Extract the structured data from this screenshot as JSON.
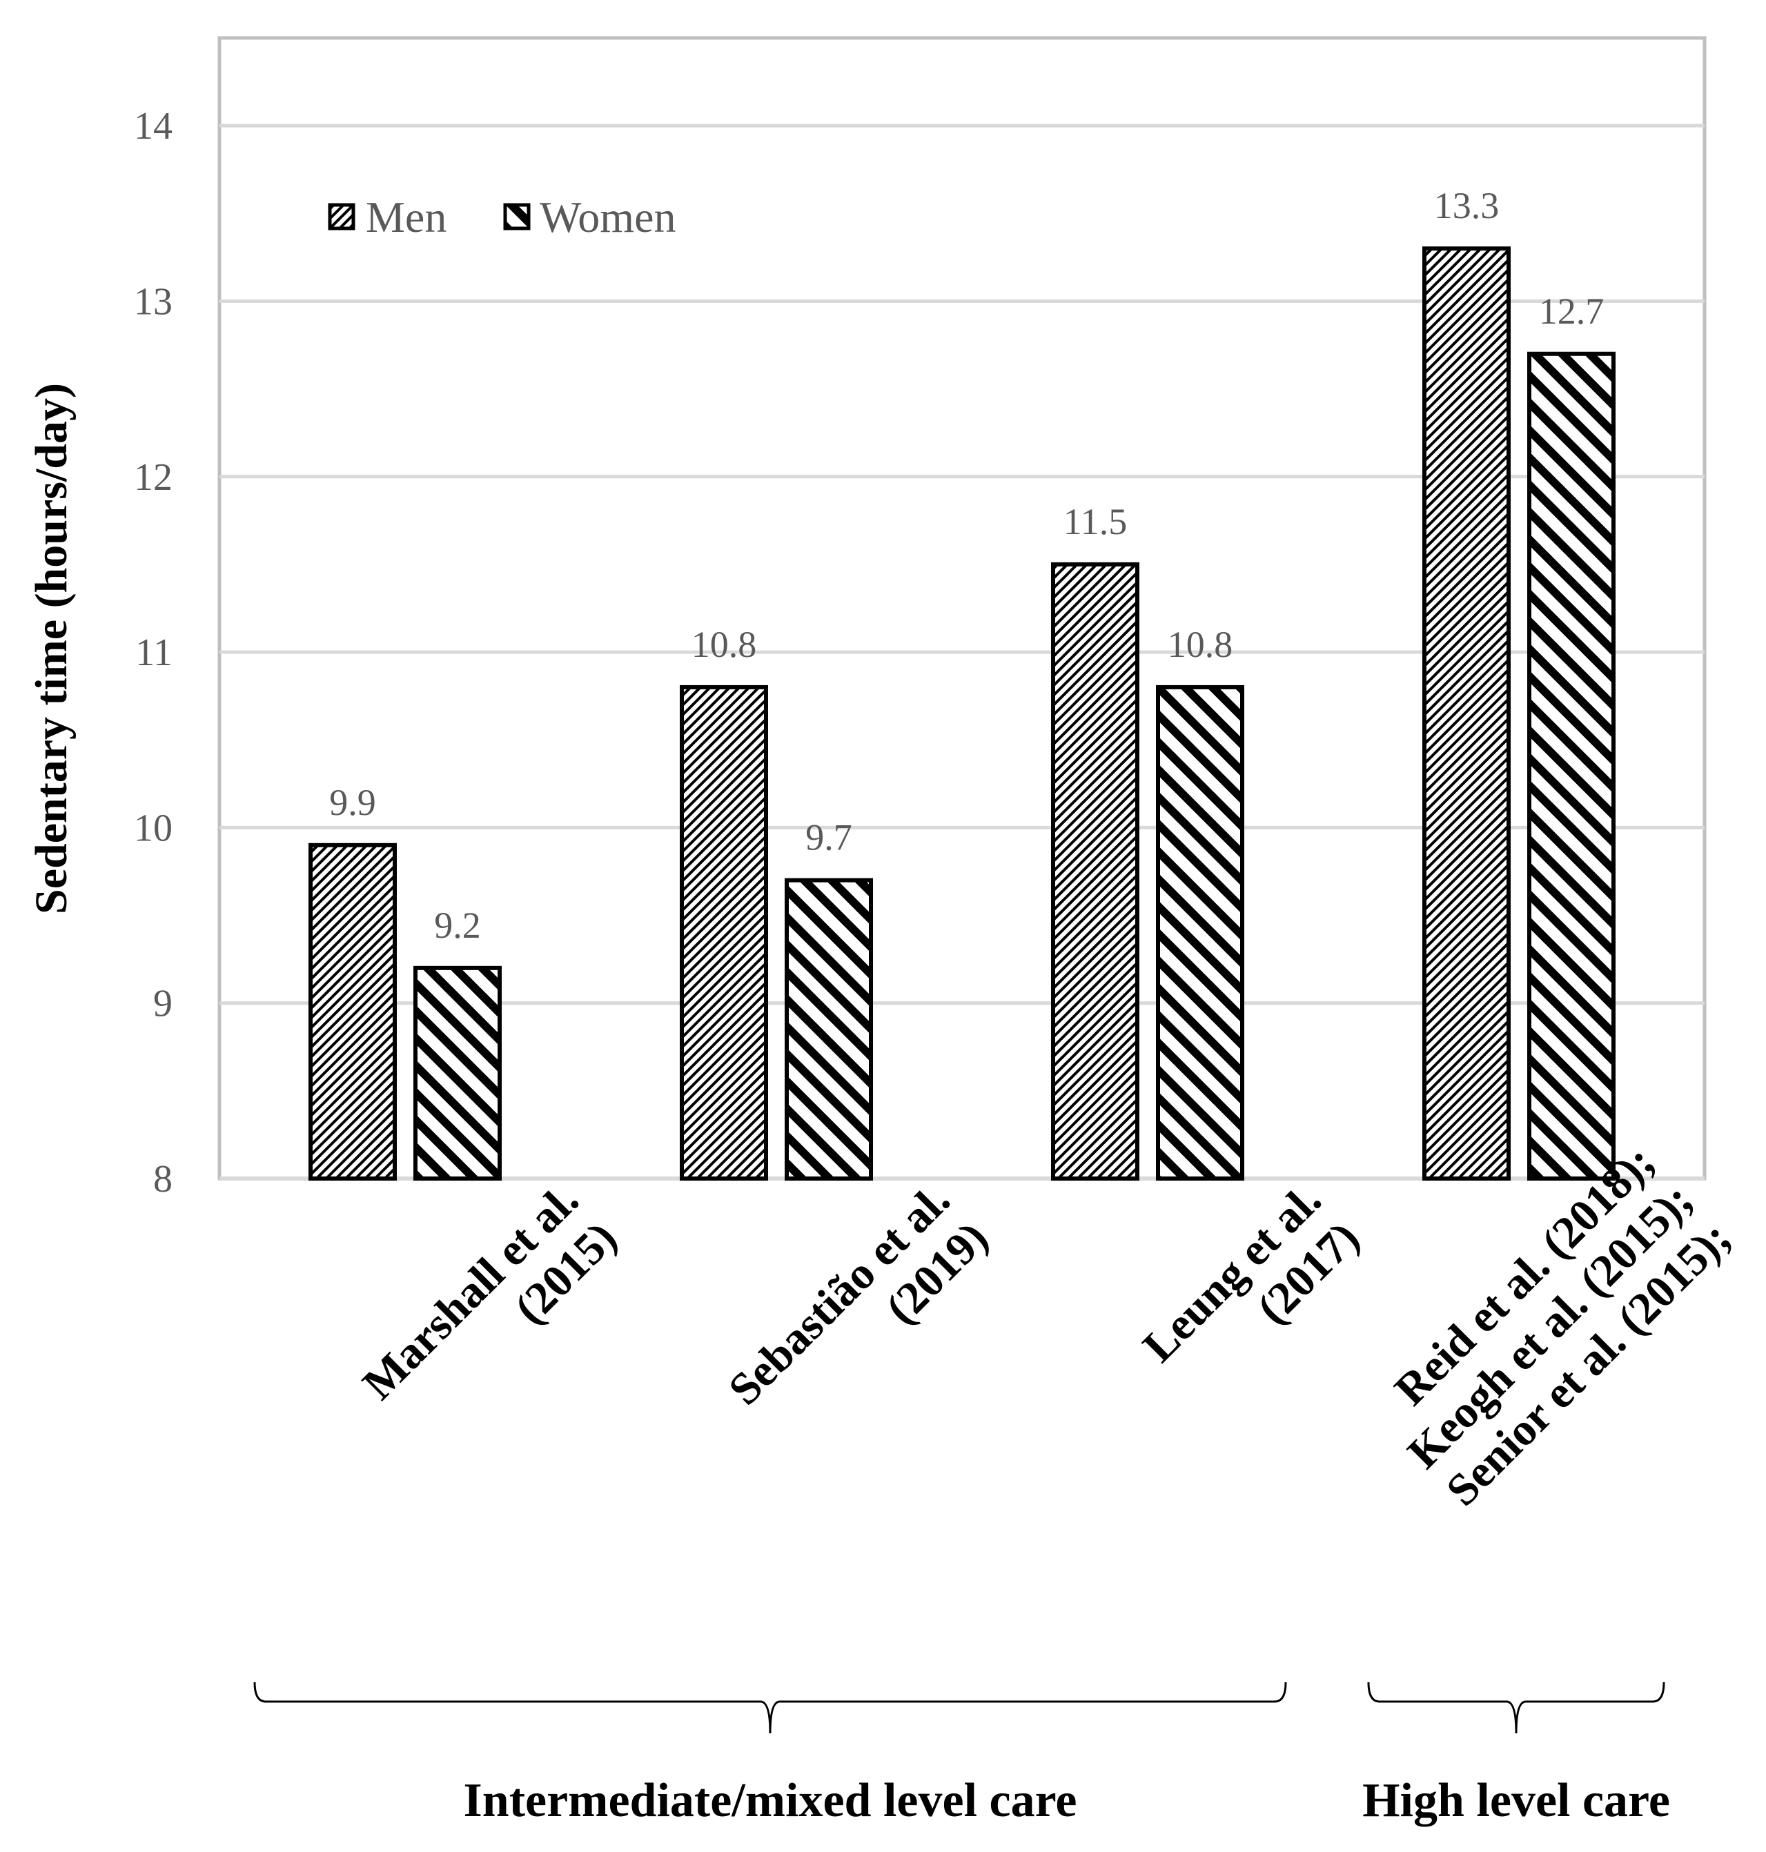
{
  "chart_data": {
    "type": "bar",
    "ylabel": "Sedentary time (hours/day)",
    "xlabel": "",
    "ylim": [
      8,
      14.5
    ],
    "yticks": [
      8,
      9,
      10,
      11,
      12,
      13,
      14
    ],
    "grid": true,
    "legend_position": "top-left",
    "categories": [
      [
        "Marshall et al.",
        "(2015)"
      ],
      [
        "Sebastião et al.",
        "(2019)"
      ],
      [
        "Leung et al.",
        "(2017)"
      ],
      [
        "Reid et al. (2018);",
        "Keogh et al. (2015);",
        "Senior et al. (2015);"
      ]
    ],
    "series": [
      {
        "name": "Men",
        "values": [
          9.9,
          10.8,
          11.5,
          13.3
        ],
        "labels": [
          "9.9",
          "10.8",
          "11.5",
          "13.3"
        ],
        "pattern": "fine-diagonal"
      },
      {
        "name": "Women",
        "values": [
          9.2,
          9.7,
          10.8,
          12.7
        ],
        "labels": [
          "9.2",
          "9.7",
          "10.8",
          "12.7"
        ],
        "pattern": "bold-diagonal"
      }
    ],
    "groups": [
      {
        "label": "Intermediate/mixed level care",
        "categories": [
          0,
          1,
          2
        ]
      },
      {
        "label": "High level care",
        "categories": [
          3
        ]
      }
    ]
  }
}
